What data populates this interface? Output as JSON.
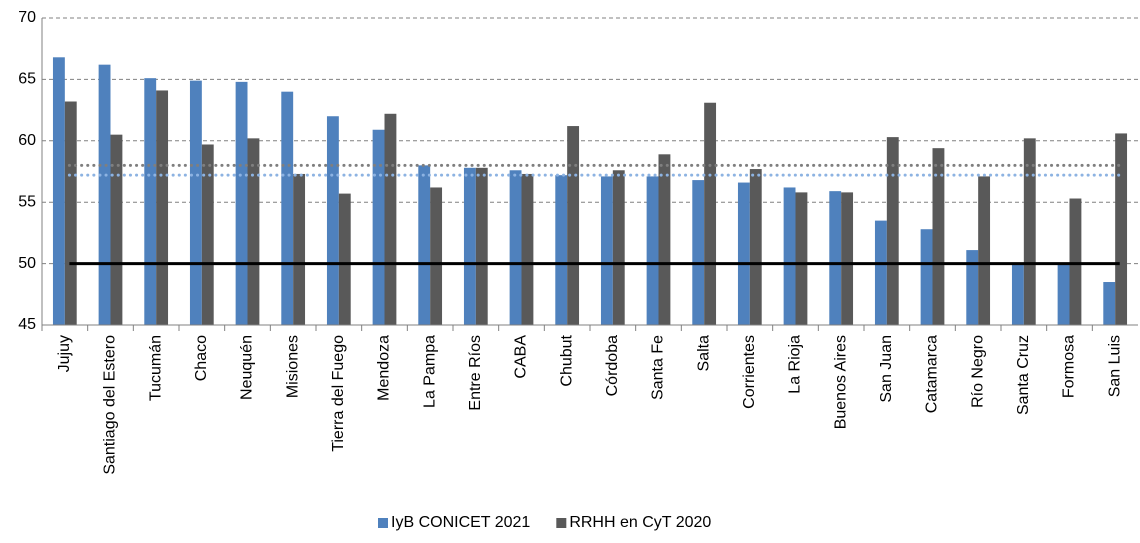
{
  "chart_data": {
    "type": "bar",
    "categories": [
      "Jujuy",
      "Santiago del Estero",
      "Tucumán",
      "Chaco",
      "Neuquén",
      "Misiones",
      "Tierra del Fuego",
      "Mendoza",
      "La Pampa",
      "Entre Ríos",
      "CABA",
      "Chubut",
      "Córdoba",
      "Santa Fe",
      "Salta",
      "Corrientes",
      "La Rioja",
      "Buenos Aires",
      "San Juan",
      "Catamarca",
      "Río Negro",
      "Santa Cruz",
      "Formosa",
      "San Luis"
    ],
    "series": [
      {
        "name": "IyB CONICET 2021",
        "color": "#4f81bd",
        "values": [
          66.8,
          66.2,
          65.1,
          64.9,
          64.8,
          64.0,
          62.0,
          60.9,
          58.0,
          57.8,
          57.6,
          57.2,
          57.1,
          57.1,
          56.8,
          56.6,
          56.2,
          55.9,
          53.5,
          52.8,
          51.1,
          50.0,
          50.0,
          48.5
        ]
      },
      {
        "name": "RRHH en CyT 2020",
        "color": "#595959",
        "values": [
          63.2,
          60.5,
          64.1,
          59.7,
          60.2,
          57.3,
          55.7,
          62.2,
          56.2,
          57.8,
          57.3,
          61.2,
          57.6,
          58.9,
          63.1,
          57.7,
          55.8,
          55.8,
          60.3,
          59.4,
          57.1,
          60.2,
          55.3,
          60.6
        ]
      }
    ],
    "reference_lines": [
      {
        "value": 50,
        "color": "#000000",
        "style": "solid"
      },
      {
        "value": 58,
        "color": "#7f7f7f",
        "style": "dotted"
      },
      {
        "value": 57.2,
        "color": "#8db3e2",
        "style": "dotted"
      }
    ],
    "ylim": [
      45,
      70
    ],
    "yticks": [
      45,
      50,
      55,
      60,
      65,
      70
    ],
    "grid": true,
    "legend": "bottom"
  }
}
